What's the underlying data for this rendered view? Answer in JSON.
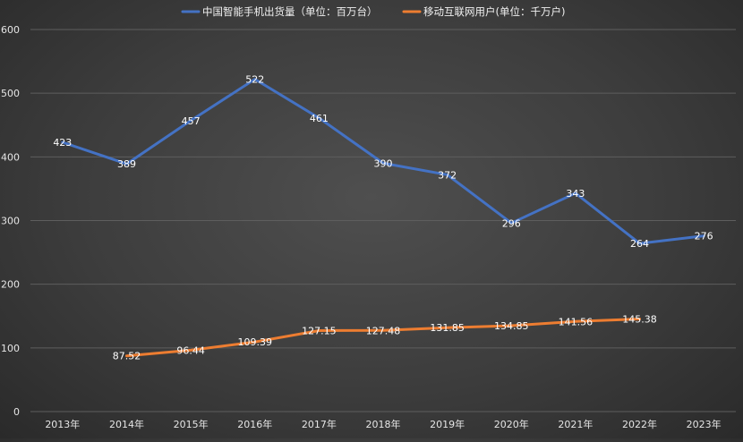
{
  "chart_data": {
    "type": "line",
    "title": "",
    "xlabel": "",
    "ylabel": "",
    "categories": [
      "2013年",
      "2014年",
      "2015年",
      "2016年",
      "2017年",
      "2018年",
      "2019年",
      "2020年",
      "2021年",
      "2022年",
      "2023年"
    ],
    "ylim": [
      0,
      600
    ],
    "yticks": [
      0,
      100,
      200,
      300,
      400,
      500,
      600
    ],
    "grid": true,
    "legend_position": "top-center",
    "series": [
      {
        "name": "中国智能手机出货量（单位：百万台）",
        "color": "#4472c4",
        "values": [
          423,
          389,
          457,
          522,
          461,
          390,
          372,
          296,
          343,
          264,
          276
        ],
        "labels": [
          "423",
          "389",
          "457",
          "522",
          "461",
          "390",
          "372",
          "296",
          "343",
          "264",
          "276"
        ]
      },
      {
        "name": "移动互联网用户(单位：千万户)",
        "color": "#ed7d31",
        "values": [
          null,
          87.52,
          96.44,
          109.39,
          127.15,
          127.48,
          131.85,
          134.85,
          141.56,
          145.38,
          null
        ],
        "labels": [
          null,
          "87.52",
          "96.44",
          "109.39",
          "127.15",
          "127.48",
          "131.85",
          "134.85",
          "141.56",
          "145.38",
          null
        ]
      }
    ]
  }
}
